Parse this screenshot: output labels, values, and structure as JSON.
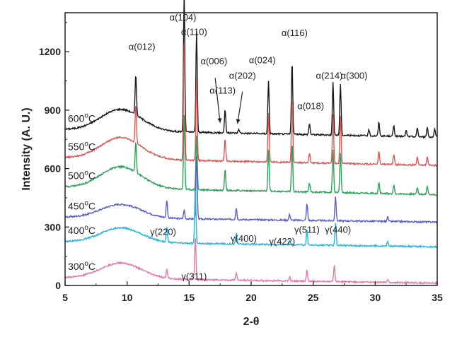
{
  "chart_data": {
    "type": "line",
    "xlabel": "2-θ",
    "ylabel": "Intensity (A. U.)",
    "xlim": [
      5,
      35
    ],
    "ylim": [
      0,
      1400
    ],
    "xticks": [
      "5",
      "10",
      "15",
      "20",
      "25",
      "30",
      "35"
    ],
    "yticks": [
      "0",
      "300",
      "600",
      "900",
      "1200"
    ],
    "grid": false,
    "series": [
      {
        "name": "600°C",
        "label_main": "600",
        "label_sup": "o",
        "label_unit": "C",
        "color": "#1a1a1a",
        "baseline": 800,
        "hump_height": 110,
        "peaks": [
          [
            10.7,
            210
          ],
          [
            14.6,
            720
          ],
          [
            15.6,
            520
          ],
          [
            17.9,
            120
          ],
          [
            19.0,
            20
          ],
          [
            21.4,
            270
          ],
          [
            23.3,
            370
          ],
          [
            24.7,
            55
          ],
          [
            26.6,
            270
          ],
          [
            27.2,
            260
          ],
          [
            29.5,
            30
          ],
          [
            30.3,
            70
          ],
          [
            31.5,
            55
          ],
          [
            32.5,
            30
          ],
          [
            33.4,
            45
          ],
          [
            34.2,
            50
          ],
          [
            34.8,
            40
          ]
        ]
      },
      {
        "name": "550°C",
        "label_main": "550",
        "label_sup": "o",
        "label_unit": "C",
        "color": "#d65a5a",
        "baseline": 655,
        "hump_height": 110,
        "peaks": [
          [
            10.7,
            200
          ],
          [
            14.6,
            600
          ],
          [
            15.6,
            420
          ],
          [
            17.9,
            115
          ],
          [
            21.4,
            250
          ],
          [
            23.3,
            330
          ],
          [
            24.7,
            50
          ],
          [
            26.6,
            250
          ],
          [
            27.2,
            245
          ],
          [
            30.3,
            65
          ],
          [
            31.5,
            50
          ],
          [
            33.4,
            40
          ],
          [
            34.2,
            45
          ]
        ]
      },
      {
        "name": "500°C",
        "label_main": "500",
        "label_sup": "o",
        "label_unit": "C",
        "color": "#2ea05a",
        "baseline": 505,
        "hump_height": 110,
        "peaks": [
          [
            10.7,
            160
          ],
          [
            14.6,
            380
          ],
          [
            15.6,
            280
          ],
          [
            17.9,
            110
          ],
          [
            21.4,
            210
          ],
          [
            23.3,
            250
          ],
          [
            24.7,
            45
          ],
          [
            26.6,
            220
          ],
          [
            27.2,
            200
          ],
          [
            30.3,
            55
          ],
          [
            31.5,
            45
          ],
          [
            33.4,
            35
          ],
          [
            34.2,
            40
          ]
        ]
      },
      {
        "name": "450°C",
        "label_main": "450",
        "label_sup": "o",
        "label_unit": "C",
        "color": "#5a5fc8",
        "baseline": 350,
        "hump_height": 70,
        "peaks": [
          [
            13.2,
            90
          ],
          [
            14.6,
            45
          ],
          [
            15.6,
            320
          ],
          [
            18.8,
            60
          ],
          [
            23.1,
            30
          ],
          [
            24.5,
            85
          ],
          [
            26.8,
            120
          ],
          [
            31.0,
            25
          ]
        ]
      },
      {
        "name": "400°C",
        "label_main": "400",
        "label_sup": "o",
        "label_unit": "C",
        "color": "#2cb5d9",
        "baseline": 225,
        "hump_height": 75,
        "peaks": [
          [
            13.2,
            80
          ],
          [
            15.5,
            290
          ],
          [
            18.8,
            55
          ],
          [
            23.1,
            25
          ],
          [
            24.5,
            75
          ],
          [
            26.8,
            115
          ],
          [
            31.0,
            20
          ]
        ]
      },
      {
        "name": "300°C",
        "label_main": "300",
        "label_sup": "o",
        "label_unit": "C",
        "color": "#e07aa8",
        "baseline": 40,
        "hump_height": 80,
        "peaks": [
          [
            13.2,
            45
          ],
          [
            15.5,
            220
          ],
          [
            18.8,
            40
          ],
          [
            23.1,
            20
          ],
          [
            24.5,
            55
          ],
          [
            26.7,
            85
          ],
          [
            31.0,
            15
          ]
        ]
      }
    ],
    "annotations": [
      {
        "main": "α",
        "hkl": "(012)",
        "anchor_x": 11.2,
        "anchor_y": 1210
      },
      {
        "main": "α",
        "hkl": "(104)",
        "anchor_x": 14.5,
        "anchor_y": 1360
      },
      {
        "main": "α",
        "hkl": "(110)",
        "anchor_x": 15.4,
        "anchor_y": 1285
      },
      {
        "main": "α",
        "hkl": "(006)",
        "anchor_x": 17.0,
        "anchor_y": 1135
      },
      {
        "main": "α",
        "hkl": "(113)",
        "anchor_x": 17.7,
        "anchor_y": 985
      },
      {
        "main": "α",
        "hkl": "(202)",
        "anchor_x": 19.3,
        "anchor_y": 1060
      },
      {
        "main": "α",
        "hkl": "(024)",
        "anchor_x": 20.9,
        "anchor_y": 1140
      },
      {
        "main": "α",
        "hkl": "(116)",
        "anchor_x": 23.5,
        "anchor_y": 1280
      },
      {
        "main": "α",
        "hkl": "(214)",
        "anchor_x": 26.3,
        "anchor_y": 1060
      },
      {
        "main": "α",
        "hkl": "(300)",
        "anchor_x": 28.3,
        "anchor_y": 1060
      },
      {
        "main": "α",
        "hkl": "(018)",
        "anchor_x": 24.8,
        "anchor_y": 905
      },
      {
        "main": "γ",
        "hkl": "(220)",
        "anchor_x": 12.9,
        "anchor_y": 260
      },
      {
        "main": "γ",
        "hkl": "(311)",
        "anchor_x": 15.4,
        "anchor_y": 30
      },
      {
        "main": "γ",
        "hkl": "(400)",
        "anchor_x": 19.4,
        "anchor_y": 225
      },
      {
        "main": "γ",
        "hkl": "(422)",
        "anchor_x": 22.5,
        "anchor_y": 210
      },
      {
        "main": "γ",
        "hkl": "(511)",
        "anchor_x": 24.5,
        "anchor_y": 270
      },
      {
        "main": "γ",
        "hkl": "(440)",
        "anchor_x": 27.0,
        "anchor_y": 270
      }
    ],
    "arrows": [
      {
        "from_x": 17.1,
        "from_y": 1065,
        "to_x": 17.5,
        "to_y": 835
      },
      {
        "from_x": 19.3,
        "from_y": 995,
        "to_x": 18.9,
        "to_y": 830
      }
    ]
  }
}
